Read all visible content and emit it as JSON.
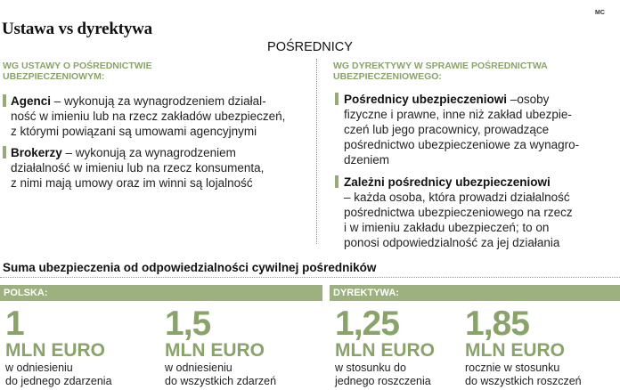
{
  "corner_mark": "MC",
  "title": "Ustawa vs dyrektywa",
  "section_heading": "POŚREDNICY",
  "left_column": {
    "heading_line1": "WG USTAWY O POŚREDNICTWIE",
    "heading_line2": "UBEZPIECZENIOWYM:",
    "items": [
      {
        "term": "Agenci",
        "lines": [
          "– wykonują za wynagrodzeniem działal-",
          "ność w imieniu lub na rzecz zakładów ubezpieczeń,",
          "z którymi powiązani są umowami agencyjnymi"
        ]
      },
      {
        "term": "Brokerzy",
        "lines": [
          "– wykonują za wynagrodzeniem",
          "działalność w imieniu lub na rzecz konsumenta,",
          "z nimi mają umowy oraz im winni są lojalność"
        ]
      }
    ]
  },
  "right_column": {
    "heading_line1": "WG DYREKTYWY W SPRAWIE POŚREDNICTWA",
    "heading_line2": "UBEZPIECZENIOWEGO:",
    "items": [
      {
        "term": "Pośrednicy ubezpieczeniowi",
        "lines": [
          "–osoby",
          "fizyczne i prawne, inne niż zakład ubezpie-",
          "czeń lub jego pracownicy, prowadzące",
          "pośrednictwo ubezpieczeniowe za wynagro-",
          "dzeniem"
        ]
      },
      {
        "term": "Zależni pośrednicy ubezpieczeniowi",
        "lines": [
          "– każda osoba, która prowadzi działalność",
          "pośrednictwa ubezpieczeniowego na rzecz",
          "i w imieniu zakładu ubezpieczeń; to on",
          "ponosi odpowiedzialność za jej działania"
        ]
      }
    ]
  },
  "subtitle": "Suma ubezpieczenia od odpowiedzialności cywilnej pośredników",
  "bands": {
    "left": "POLSKA:",
    "right": "DYREKTYWA:"
  },
  "figures": [
    {
      "value": "1",
      "unit": "MLN EURO",
      "desc1": "w odniesieniu",
      "desc2": "do jednego zdarzenia"
    },
    {
      "value": "1,5",
      "unit": "MLN EURO",
      "desc1": "w odniesieniu",
      "desc2": "do wszystkich zdarzeń"
    },
    {
      "value": "1,25",
      "unit": "MLN EURO",
      "desc1": "w stosunku do",
      "desc2": "jednego roszczenia"
    },
    {
      "value": "1,85",
      "unit": "MLN EURO",
      "desc1": "rocznie w stosunku",
      "desc2": "do wszystkich roszczeń"
    }
  ]
}
